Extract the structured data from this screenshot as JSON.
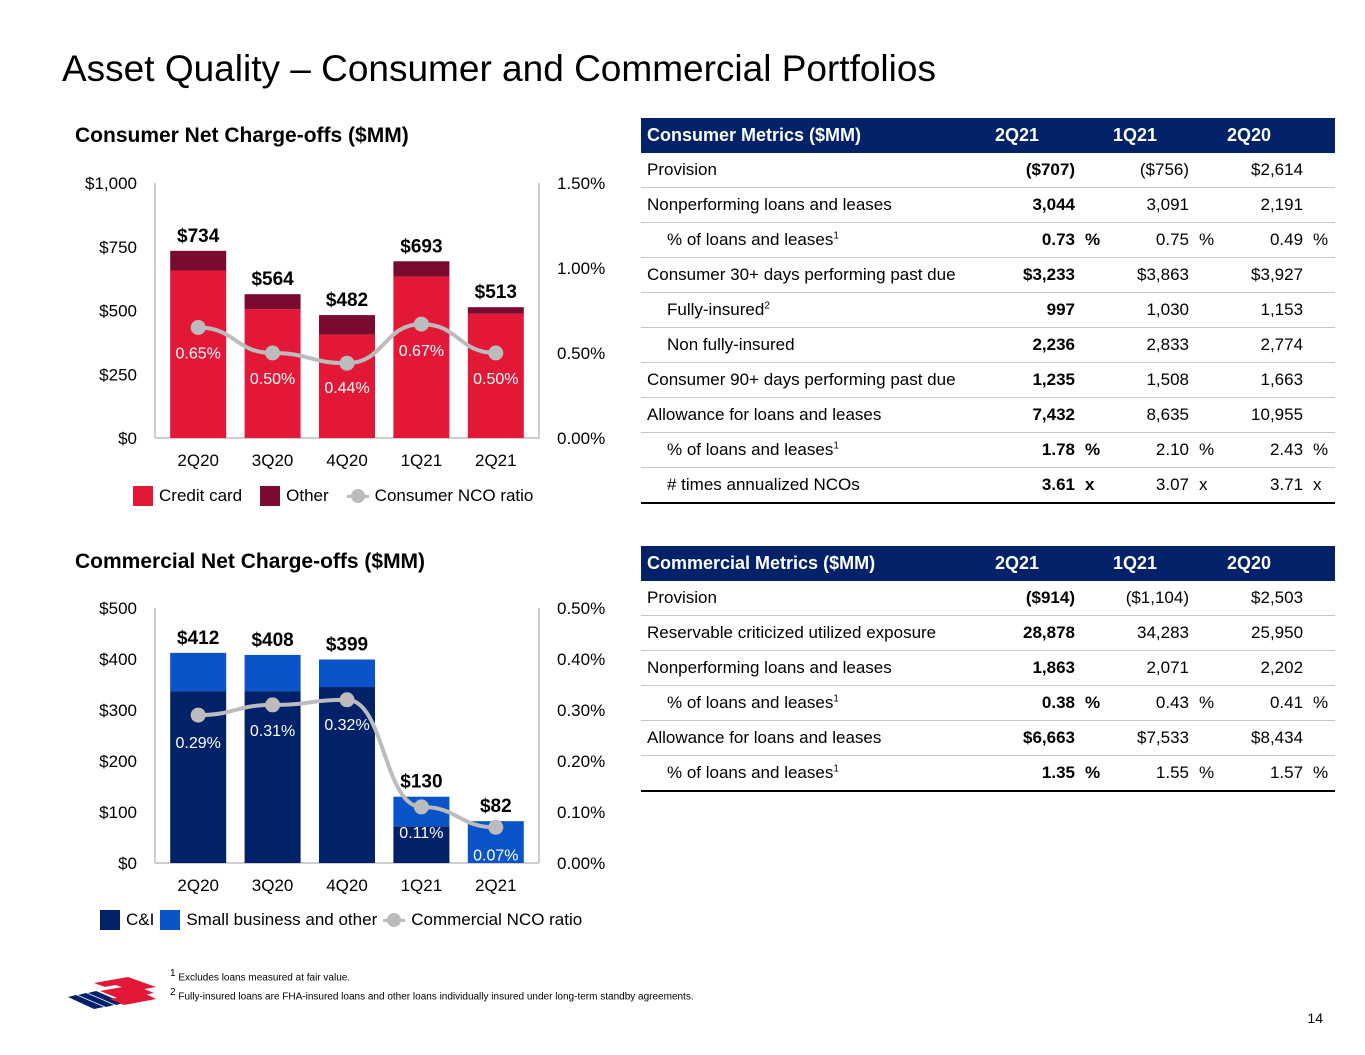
{
  "page_title": "Asset Quality – Consumer and Commercial Portfolios",
  "page_number": "14",
  "colors": {
    "credit_card": "#e31837",
    "other": "#7b0a2f",
    "ci": "#012169",
    "small_business": "#0a53c8",
    "ratio_line": "#bcbcbc",
    "table_header": "#012169"
  },
  "chart_data": [
    {
      "type": "bar",
      "stacked": true,
      "title": "Consumer Net Charge-offs ($MM)",
      "categories": [
        "2Q20",
        "3Q20",
        "4Q20",
        "1Q21",
        "2Q21"
      ],
      "series": [
        {
          "name": "Credit card",
          "values": [
            657,
            505,
            405,
            633,
            487
          ]
        },
        {
          "name": "Other",
          "values": [
            77,
            59,
            77,
            60,
            26
          ]
        }
      ],
      "totals": [
        "$734",
        "$564",
        "$482",
        "$693",
        "$513"
      ],
      "line": {
        "name": "Consumer NCO ratio",
        "values": [
          0.65,
          0.5,
          0.44,
          0.67,
          0.5
        ],
        "labels": [
          "0.65%",
          "0.50%",
          "0.44%",
          "0.67%",
          "0.50%"
        ]
      },
      "ylim": [
        0,
        1000
      ],
      "yticks": [
        "$0",
        "$250",
        "$500",
        "$750",
        "$1,000"
      ],
      "y2lim": [
        0,
        1.5
      ],
      "y2ticks": [
        "0.00%",
        "0.50%",
        "1.00%",
        "1.50%"
      ],
      "legend": [
        "Credit card",
        "Other",
        "Consumer NCO ratio"
      ]
    },
    {
      "type": "bar",
      "stacked": true,
      "title": "Commercial Net Charge-offs ($MM)",
      "categories": [
        "2Q20",
        "3Q20",
        "4Q20",
        "1Q21",
        "2Q21"
      ],
      "series": [
        {
          "name": "C&I",
          "values": [
            337,
            337,
            345,
            72,
            0
          ]
        },
        {
          "name": "Small business and other",
          "values": [
            75,
            71,
            54,
            58,
            82
          ]
        }
      ],
      "totals": [
        "$412",
        "$408",
        "$399",
        "$130",
        "$82"
      ],
      "line": {
        "name": "Commercial NCO ratio",
        "values": [
          0.29,
          0.31,
          0.32,
          0.11,
          0.07
        ],
        "labels": [
          "0.29%",
          "0.31%",
          "0.32%",
          "0.11%",
          "0.07%"
        ]
      },
      "ylim": [
        0,
        500
      ],
      "yticks": [
        "$0",
        "$100",
        "$200",
        "$300",
        "$400",
        "$500"
      ],
      "y2lim": [
        0,
        0.5
      ],
      "y2ticks": [
        "0.00%",
        "0.10%",
        "0.20%",
        "0.30%",
        "0.40%",
        "0.50%"
      ],
      "legend": [
        "C&I",
        "Small business and other",
        "Commercial NCO ratio"
      ]
    }
  ],
  "consumer_table": {
    "header": [
      "Consumer Metrics ($MM)",
      "2Q21",
      "1Q21",
      "2Q20"
    ],
    "rows": [
      {
        "label": "Provision",
        "indent": false,
        "values": [
          "($707)",
          "($756)",
          "$2,614"
        ],
        "unit": ""
      },
      {
        "label": "Nonperforming loans and leases",
        "indent": false,
        "values": [
          "3,044",
          "3,091",
          "2,191"
        ],
        "unit": ""
      },
      {
        "label": "% of loans and leases",
        "sup": "1",
        "indent": true,
        "values": [
          "0.73",
          "0.75",
          "0.49"
        ],
        "unit": "%"
      },
      {
        "label": "Consumer 30+ days performing past due",
        "indent": false,
        "values": [
          "$3,233",
          "$3,863",
          "$3,927"
        ],
        "unit": ""
      },
      {
        "label": "Fully-insured",
        "sup": "2",
        "indent": true,
        "values": [
          "997",
          "1,030",
          "1,153"
        ],
        "unit": ""
      },
      {
        "label": "Non fully-insured",
        "indent": true,
        "values": [
          "2,236",
          "2,833",
          "2,774"
        ],
        "unit": ""
      },
      {
        "label": "Consumer 90+ days performing past due",
        "indent": false,
        "values": [
          "1,235",
          "1,508",
          "1,663"
        ],
        "unit": ""
      },
      {
        "label": "Allowance for loans and leases",
        "indent": false,
        "values": [
          "7,432",
          "8,635",
          "10,955"
        ],
        "unit": ""
      },
      {
        "label": "% of loans and leases",
        "sup": "1",
        "indent": true,
        "values": [
          "1.78",
          "2.10",
          "2.43"
        ],
        "unit": "%"
      },
      {
        "label": "# times annualized NCOs",
        "indent": true,
        "values": [
          "3.61",
          "3.07",
          "3.71"
        ],
        "unit": "x"
      }
    ]
  },
  "commercial_table": {
    "header": [
      "Commercial Metrics ($MM)",
      "2Q21",
      "1Q21",
      "2Q20"
    ],
    "rows": [
      {
        "label": "Provision",
        "indent": false,
        "values": [
          "($914)",
          "($1,104)",
          "$2,503"
        ],
        "unit": ""
      },
      {
        "label": "Reservable criticized utilized exposure",
        "indent": false,
        "values": [
          "28,878",
          "34,283",
          "25,950"
        ],
        "unit": ""
      },
      {
        "label": "Nonperforming loans and leases",
        "indent": false,
        "values": [
          "1,863",
          "2,071",
          "2,202"
        ],
        "unit": ""
      },
      {
        "label": "% of loans and leases",
        "sup": "1",
        "indent": true,
        "values": [
          "0.38",
          "0.43",
          "0.41"
        ],
        "unit": "%"
      },
      {
        "label": "Allowance for loans and leases",
        "indent": false,
        "values": [
          "$6,663",
          "$7,533",
          "$8,434"
        ],
        "unit": ""
      },
      {
        "label": "% of loans and leases",
        "sup": "1",
        "indent": true,
        "values": [
          "1.35",
          "1.55",
          "1.57"
        ],
        "unit": "%"
      }
    ]
  },
  "footnotes": [
    {
      "num": "1",
      "text": "Excludes loans measured at fair value."
    },
    {
      "num": "2",
      "text": "Fully-insured loans are FHA-insured loans and other loans individually insured under long-term standby agreements."
    }
  ]
}
